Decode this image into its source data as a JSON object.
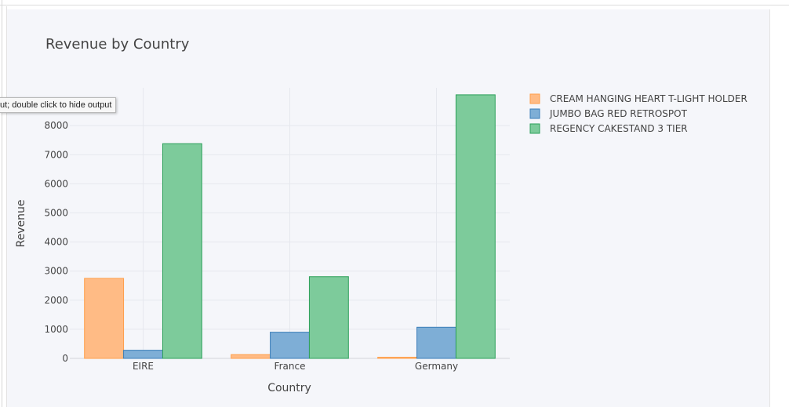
{
  "tooltip_text": "ut; double click to hide output",
  "chart_data": {
    "type": "bar",
    "title": "Revenue by Country",
    "xlabel": "Country",
    "ylabel": "Revenue",
    "categories": [
      "EIRE",
      "France",
      "Germany"
    ],
    "series": [
      {
        "name": "CREAM HANGING HEART T-LIGHT HOLDER",
        "color": "#ffbb85",
        "stroke": "#ff9f4a",
        "values": [
          2750,
          130,
          40
        ]
      },
      {
        "name": "JUMBO BAG RED RETROSPOT",
        "color": "#7eaed6",
        "stroke": "#3b7fb9",
        "values": [
          280,
          900,
          1070
        ]
      },
      {
        "name": "REGENCY CAKESTAND 3 TIER",
        "color": "#7dcb9b",
        "stroke": "#2ca05a",
        "values": [
          7380,
          2810,
          9060
        ]
      }
    ],
    "yticks": [
      0,
      1000,
      2000,
      3000,
      4000,
      5000,
      6000,
      7000,
      8000
    ],
    "ylim": [
      0,
      9300
    ],
    "grid": true,
    "legend_position": "top-right"
  }
}
